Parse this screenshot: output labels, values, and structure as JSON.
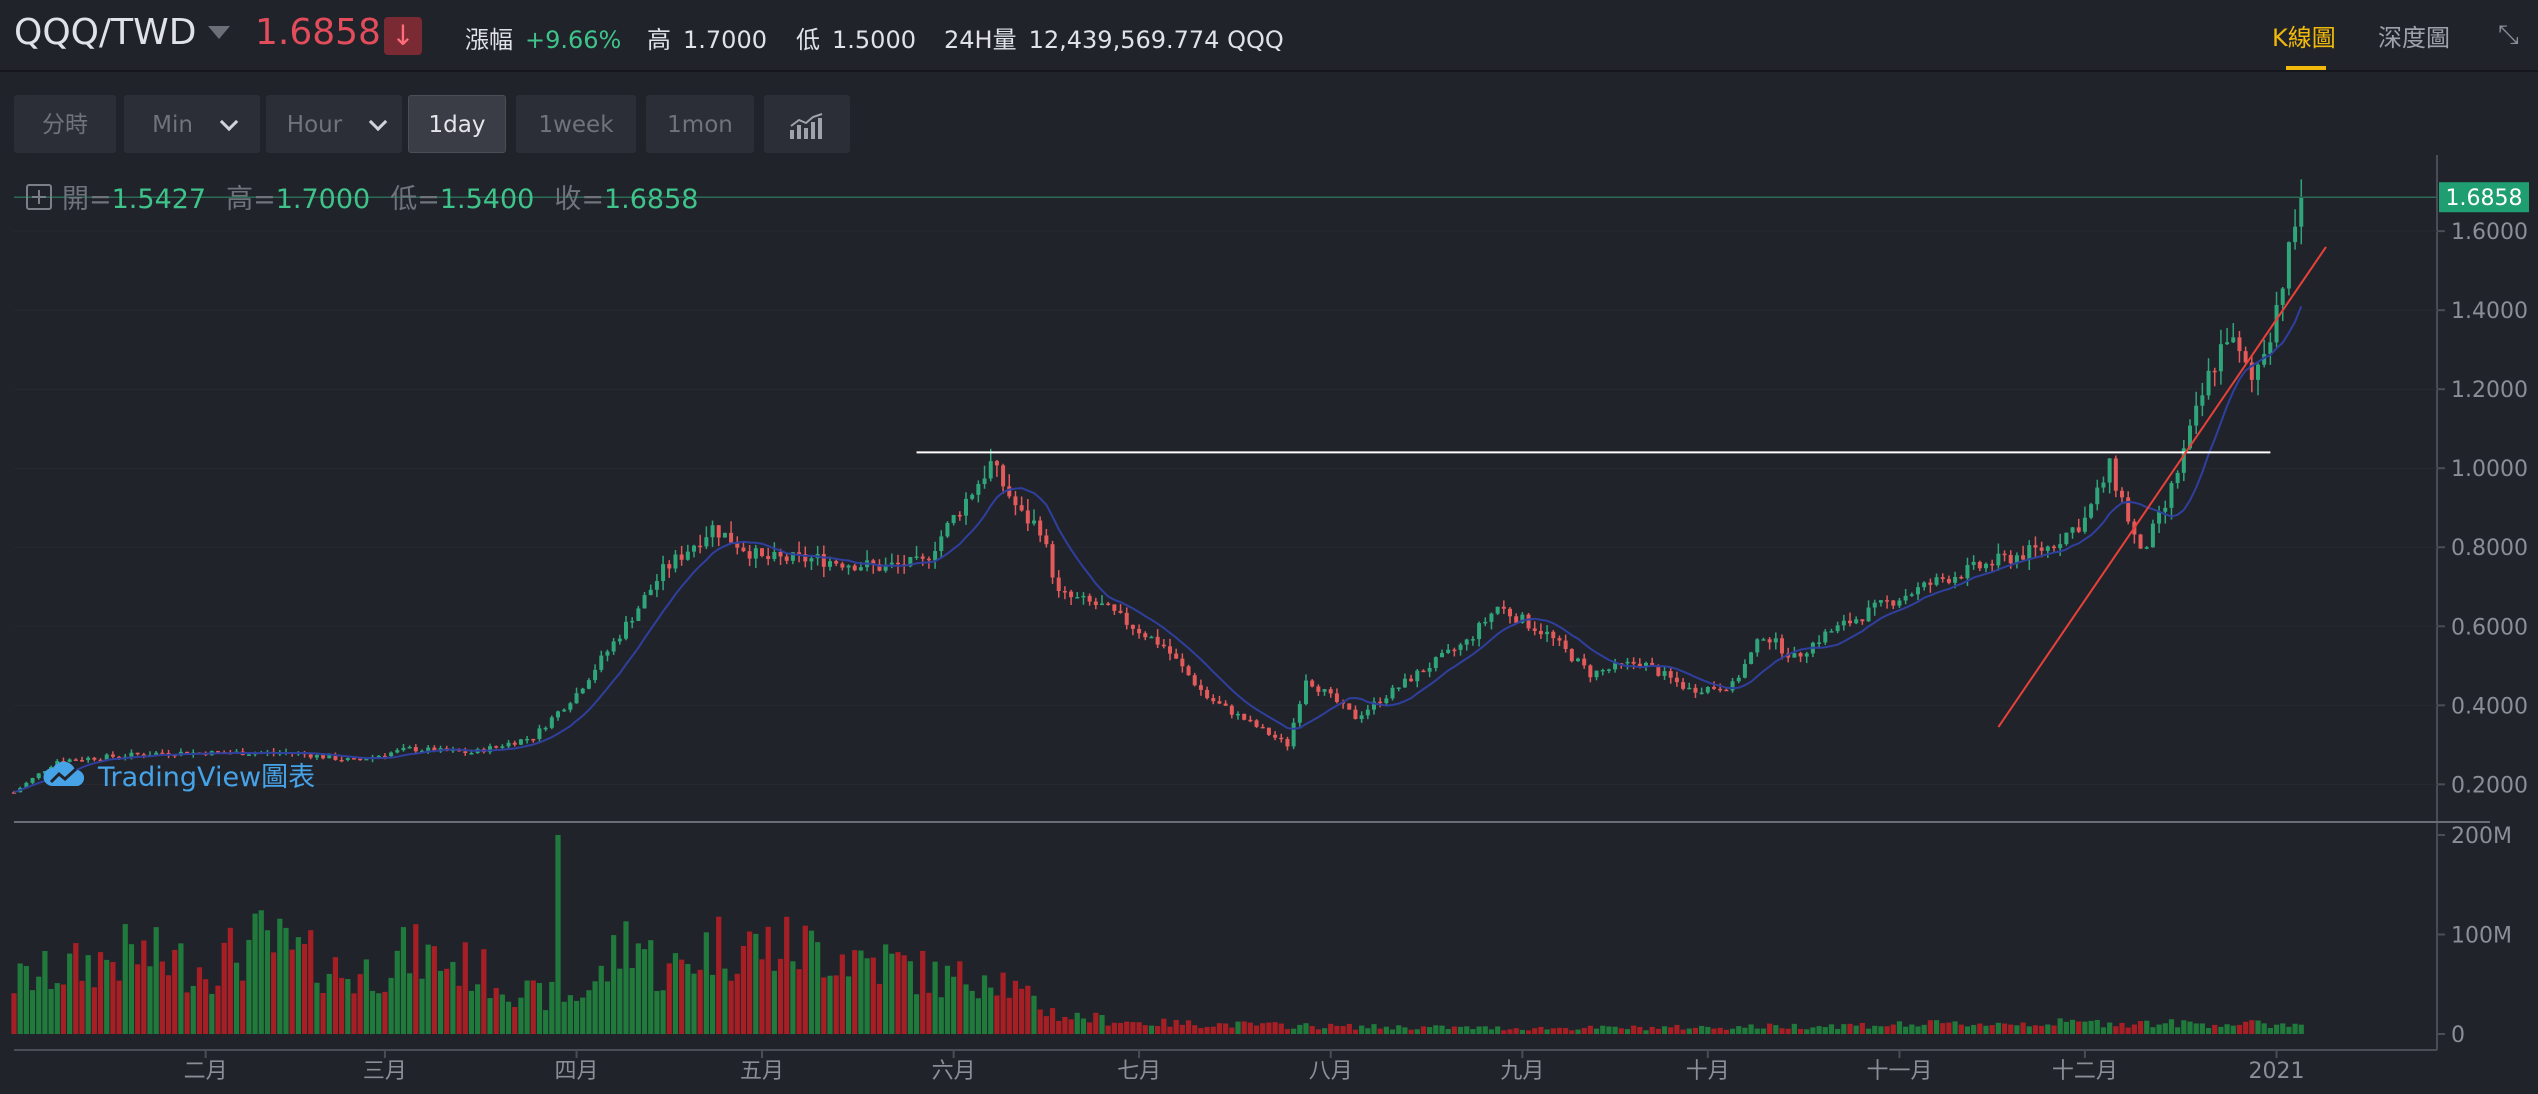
{
  "header": {
    "pair": "QQQ/TWD",
    "last_price": "1.6858",
    "change_label": "漲幅",
    "change_value": "+9.66%",
    "high_label": "高",
    "high_value": "1.7000",
    "low_label": "低",
    "low_value": "1.5000",
    "volume_label": "24H量",
    "volume_value": "12,439,569.774 QQQ",
    "tabs": [
      "K線圖",
      "深度圖"
    ],
    "active_tab": "K線圖"
  },
  "toolbar": {
    "buttons": [
      "分時",
      "Min",
      "Hour",
      "1day",
      "1week",
      "1mon"
    ],
    "active": "1day",
    "indicator_icon": "bar-chart-icon"
  },
  "ohlc": {
    "open_label": "開=",
    "open_value": "1.5427",
    "high_label": "高=",
    "high_value": "1.7000",
    "low_label": "低=",
    "low_value": "1.5400",
    "close_label": "收=",
    "close_value": "1.6858"
  },
  "watermark": "TradingView圖表",
  "colors": {
    "background": "#21232a",
    "up": "#2fa67a",
    "down": "#e35a5a",
    "volume_up": "#1f7a3c",
    "volume_down": "#a51f24",
    "ma": "#2f3f9e",
    "accent": "#f0b90b",
    "last_tag": "#1f9e72"
  },
  "chart_data": {
    "type": "candlestick",
    "x_ticks": [
      "二月",
      "三月",
      "四月",
      "五月",
      "六月",
      "七月",
      "八月",
      "九月",
      "十月",
      "十一月",
      "十二月",
      "2021"
    ],
    "x_range": [
      "2020-01-01",
      "2021-01-20"
    ],
    "price_axis": {
      "ticks": [
        "1.6000",
        "1.4000",
        "1.2000",
        "1.0000",
        "0.8000",
        "0.6000",
        "0.4000",
        "0.2000"
      ],
      "ylim": [
        0.13,
        1.78
      ]
    },
    "volume_axis": {
      "ticks": [
        "200M",
        "100M",
        "0"
      ],
      "ylim": [
        0,
        200
      ]
    },
    "last_price_tag": "1.6858",
    "price_anchors": [
      [
        "2020-01-01",
        0.18
      ],
      [
        "2020-01-08",
        0.26
      ],
      [
        "2020-01-25",
        0.28
      ],
      [
        "2020-02-15",
        0.28
      ],
      [
        "2020-02-25",
        0.26
      ],
      [
        "2020-03-05",
        0.29
      ],
      [
        "2020-03-15",
        0.28
      ],
      [
        "2020-03-25",
        0.32
      ],
      [
        "2020-04-01",
        0.43
      ],
      [
        "2020-04-08",
        0.58
      ],
      [
        "2020-04-15",
        0.74
      ],
      [
        "2020-04-23",
        0.85
      ],
      [
        "2020-05-01",
        0.77
      ],
      [
        "2020-05-10",
        0.77
      ],
      [
        "2020-05-20",
        0.75
      ],
      [
        "2020-05-27",
        0.76
      ],
      [
        "2020-06-03",
        0.92
      ],
      [
        "2020-06-07",
        1.01
      ],
      [
        "2020-06-12",
        0.88
      ],
      [
        "2020-06-15",
        0.85
      ],
      [
        "2020-06-18",
        0.68
      ],
      [
        "2020-06-25",
        0.65
      ],
      [
        "2020-07-05",
        0.55
      ],
      [
        "2020-07-12",
        0.42
      ],
      [
        "2020-07-25",
        0.3
      ],
      [
        "2020-07-28",
        0.47
      ],
      [
        "2020-08-05",
        0.37
      ],
      [
        "2020-08-15",
        0.48
      ],
      [
        "2020-08-23",
        0.56
      ],
      [
        "2020-08-28",
        0.65
      ],
      [
        "2020-09-05",
        0.58
      ],
      [
        "2020-09-12",
        0.48
      ],
      [
        "2020-09-20",
        0.51
      ],
      [
        "2020-09-28",
        0.44
      ],
      [
        "2020-10-05",
        0.45
      ],
      [
        "2020-10-10",
        0.58
      ],
      [
        "2020-10-15",
        0.52
      ],
      [
        "2020-10-20",
        0.58
      ],
      [
        "2020-10-30",
        0.66
      ],
      [
        "2020-11-08",
        0.72
      ],
      [
        "2020-11-18",
        0.77
      ],
      [
        "2020-11-25",
        0.8
      ],
      [
        "2020-12-01",
        0.87
      ],
      [
        "2020-12-05",
        1.0
      ],
      [
        "2020-12-07",
        0.92
      ],
      [
        "2020-12-10",
        0.78
      ],
      [
        "2020-12-14",
        0.9
      ],
      [
        "2020-12-17",
        1.04
      ],
      [
        "2020-12-21",
        1.23
      ],
      [
        "2020-12-24",
        1.34
      ],
      [
        "2020-12-28",
        1.22
      ],
      [
        "2020-12-31",
        1.35
      ],
      [
        "2021-01-03",
        1.54
      ],
      [
        "2021-01-05",
        1.6858
      ]
    ],
    "volume_anchors": [
      [
        "2020-01-01",
        55
      ],
      [
        "2020-01-20",
        85
      ],
      [
        "2020-02-01",
        70
      ],
      [
        "2020-02-10",
        98
      ],
      [
        "2020-02-25",
        60
      ],
      [
        "2020-03-05",
        85
      ],
      [
        "2020-03-15",
        70
      ],
      [
        "2020-03-25",
        40
      ],
      [
        "2020-04-01",
        40
      ],
      [
        "2020-04-05",
        60
      ],
      [
        "2020-04-10",
        110
      ],
      [
        "2020-04-15",
        60
      ],
      [
        "2020-04-23",
        95
      ],
      [
        "2020-05-10",
        90
      ],
      [
        "2020-05-22",
        75
      ],
      [
        "2020-06-01",
        55
      ],
      [
        "2020-06-07",
        70
      ],
      [
        "2020-06-12",
        40
      ],
      [
        "2020-06-18",
        20
      ],
      [
        "2020-07-01",
        12
      ],
      [
        "2020-08-01",
        8
      ],
      [
        "2020-09-01",
        6
      ],
      [
        "2020-10-01",
        7
      ],
      [
        "2020-11-01",
        10
      ],
      [
        "2020-12-01",
        12
      ],
      [
        "2021-01-05",
        10
      ]
    ],
    "volume_spike": [
      "2020-03-29",
      200
    ],
    "horizontal_line": {
      "price": 1.04,
      "from": "2020-05-26",
      "to": "2020-12-31"
    },
    "trend_line": {
      "from": [
        "2020-11-17",
        0.345
      ],
      "to": [
        "2021-01-09",
        1.56
      ]
    }
  }
}
